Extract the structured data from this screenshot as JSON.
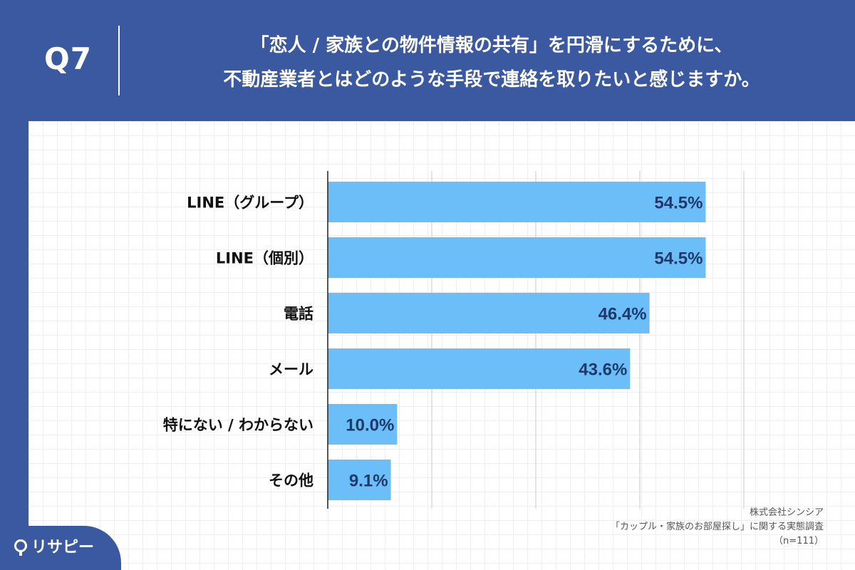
{
  "header": {
    "question": "Q7",
    "title_lines": [
      "「恋人 / 家族との物件情報の共有」を円滑にするために、",
      "不動産業者とはどのような手段で連絡を取りたいと感じますか。"
    ]
  },
  "chart_data": {
    "type": "bar",
    "orientation": "horizontal",
    "categories": [
      "LINE（グループ）",
      "LINE（個別）",
      "電話",
      "メール",
      "特にない / わからない",
      "その他"
    ],
    "values": [
      54.5,
      54.5,
      46.4,
      43.6,
      10.0,
      9.1
    ],
    "value_labels": [
      "54.5%",
      "54.5%",
      "46.4%",
      "43.6%",
      "10.0%",
      "9.1%"
    ],
    "xlim": [
      0,
      60
    ],
    "gridlines_at": [
      0,
      15,
      30,
      45,
      60
    ],
    "bar_color": "#6bbef8",
    "gridline_color": "#c8c8c8"
  },
  "source": {
    "company": "株式会社シンシア",
    "survey": "「カップル・家族のお部屋探し」に関する実態調査",
    "sample": "（n=111）"
  },
  "logo": {
    "text": "リサピー",
    "icon": "pin-icon"
  }
}
